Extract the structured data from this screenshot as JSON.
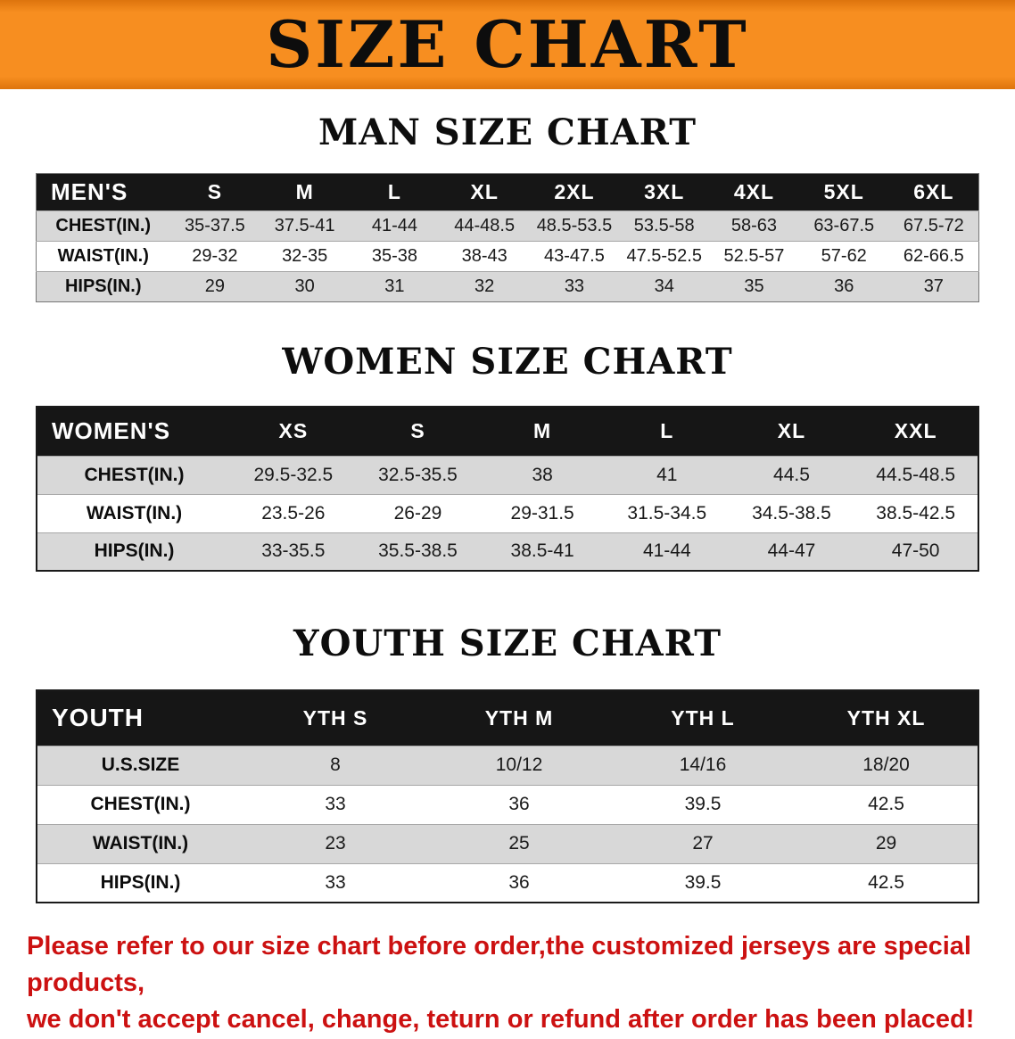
{
  "banner": {
    "title": "SIZE CHART"
  },
  "colors": {
    "banner_bg": "#f78e20",
    "table_header_bg": "#161616",
    "row_alt_bg": "#d8d8d8",
    "footer_text": "#cc1111"
  },
  "sections": [
    {
      "id": "men",
      "heading": "MAN SIZE CHART",
      "table": {
        "header": [
          "MEN'S",
          "S",
          "M",
          "L",
          "XL",
          "2XL",
          "3XL",
          "4XL",
          "5XL",
          "6XL"
        ],
        "rows": [
          [
            "CHEST(IN.)",
            "35-37.5",
            "37.5-41",
            "41-44",
            "44-48.5",
            "48.5-53.5",
            "53.5-58",
            "58-63",
            "63-67.5",
            "67.5-72"
          ],
          [
            "WAIST(IN.)",
            "29-32",
            "32-35",
            "35-38",
            "38-43",
            "43-47.5",
            "47.5-52.5",
            "52.5-57",
            "57-62",
            "62-66.5"
          ],
          [
            "HIPS(IN.)",
            "29",
            "30",
            "31",
            "32",
            "33",
            "34",
            "35",
            "36",
            "37"
          ]
        ]
      }
    },
    {
      "id": "women",
      "heading": "WOMEN SIZE CHART",
      "table": {
        "header": [
          "WOMEN'S",
          "XS",
          "S",
          "M",
          "L",
          "XL",
          "XXL"
        ],
        "rows": [
          [
            "CHEST(IN.)",
            "29.5-32.5",
            "32.5-35.5",
            "38",
            "41",
            "44.5",
            "44.5-48.5"
          ],
          [
            "WAIST(IN.)",
            "23.5-26",
            "26-29",
            "29-31.5",
            "31.5-34.5",
            "34.5-38.5",
            "38.5-42.5"
          ],
          [
            "HIPS(IN.)",
            "33-35.5",
            "35.5-38.5",
            "38.5-41",
            "41-44",
            "44-47",
            "47-50"
          ]
        ]
      }
    },
    {
      "id": "youth",
      "heading": "YOUTH SIZE CHART",
      "table": {
        "header": [
          "YOUTH",
          "YTH S",
          "YTH M",
          "YTH L",
          "YTH XL"
        ],
        "rows": [
          [
            "U.S.SIZE",
            "8",
            "10/12",
            "14/16",
            "18/20"
          ],
          [
            "CHEST(IN.)",
            "33",
            "36",
            "39.5",
            "42.5"
          ],
          [
            "WAIST(IN.)",
            "23",
            "25",
            "27",
            "29"
          ],
          [
            "HIPS(IN.)",
            "33",
            "36",
            "39.5",
            "42.5"
          ]
        ]
      }
    }
  ],
  "footer": {
    "lines": [
      "Please refer to our size chart before order,the customized jerseys are special products,",
      "we don't accept cancel, change, teturn or refund after order has been placed!"
    ]
  }
}
